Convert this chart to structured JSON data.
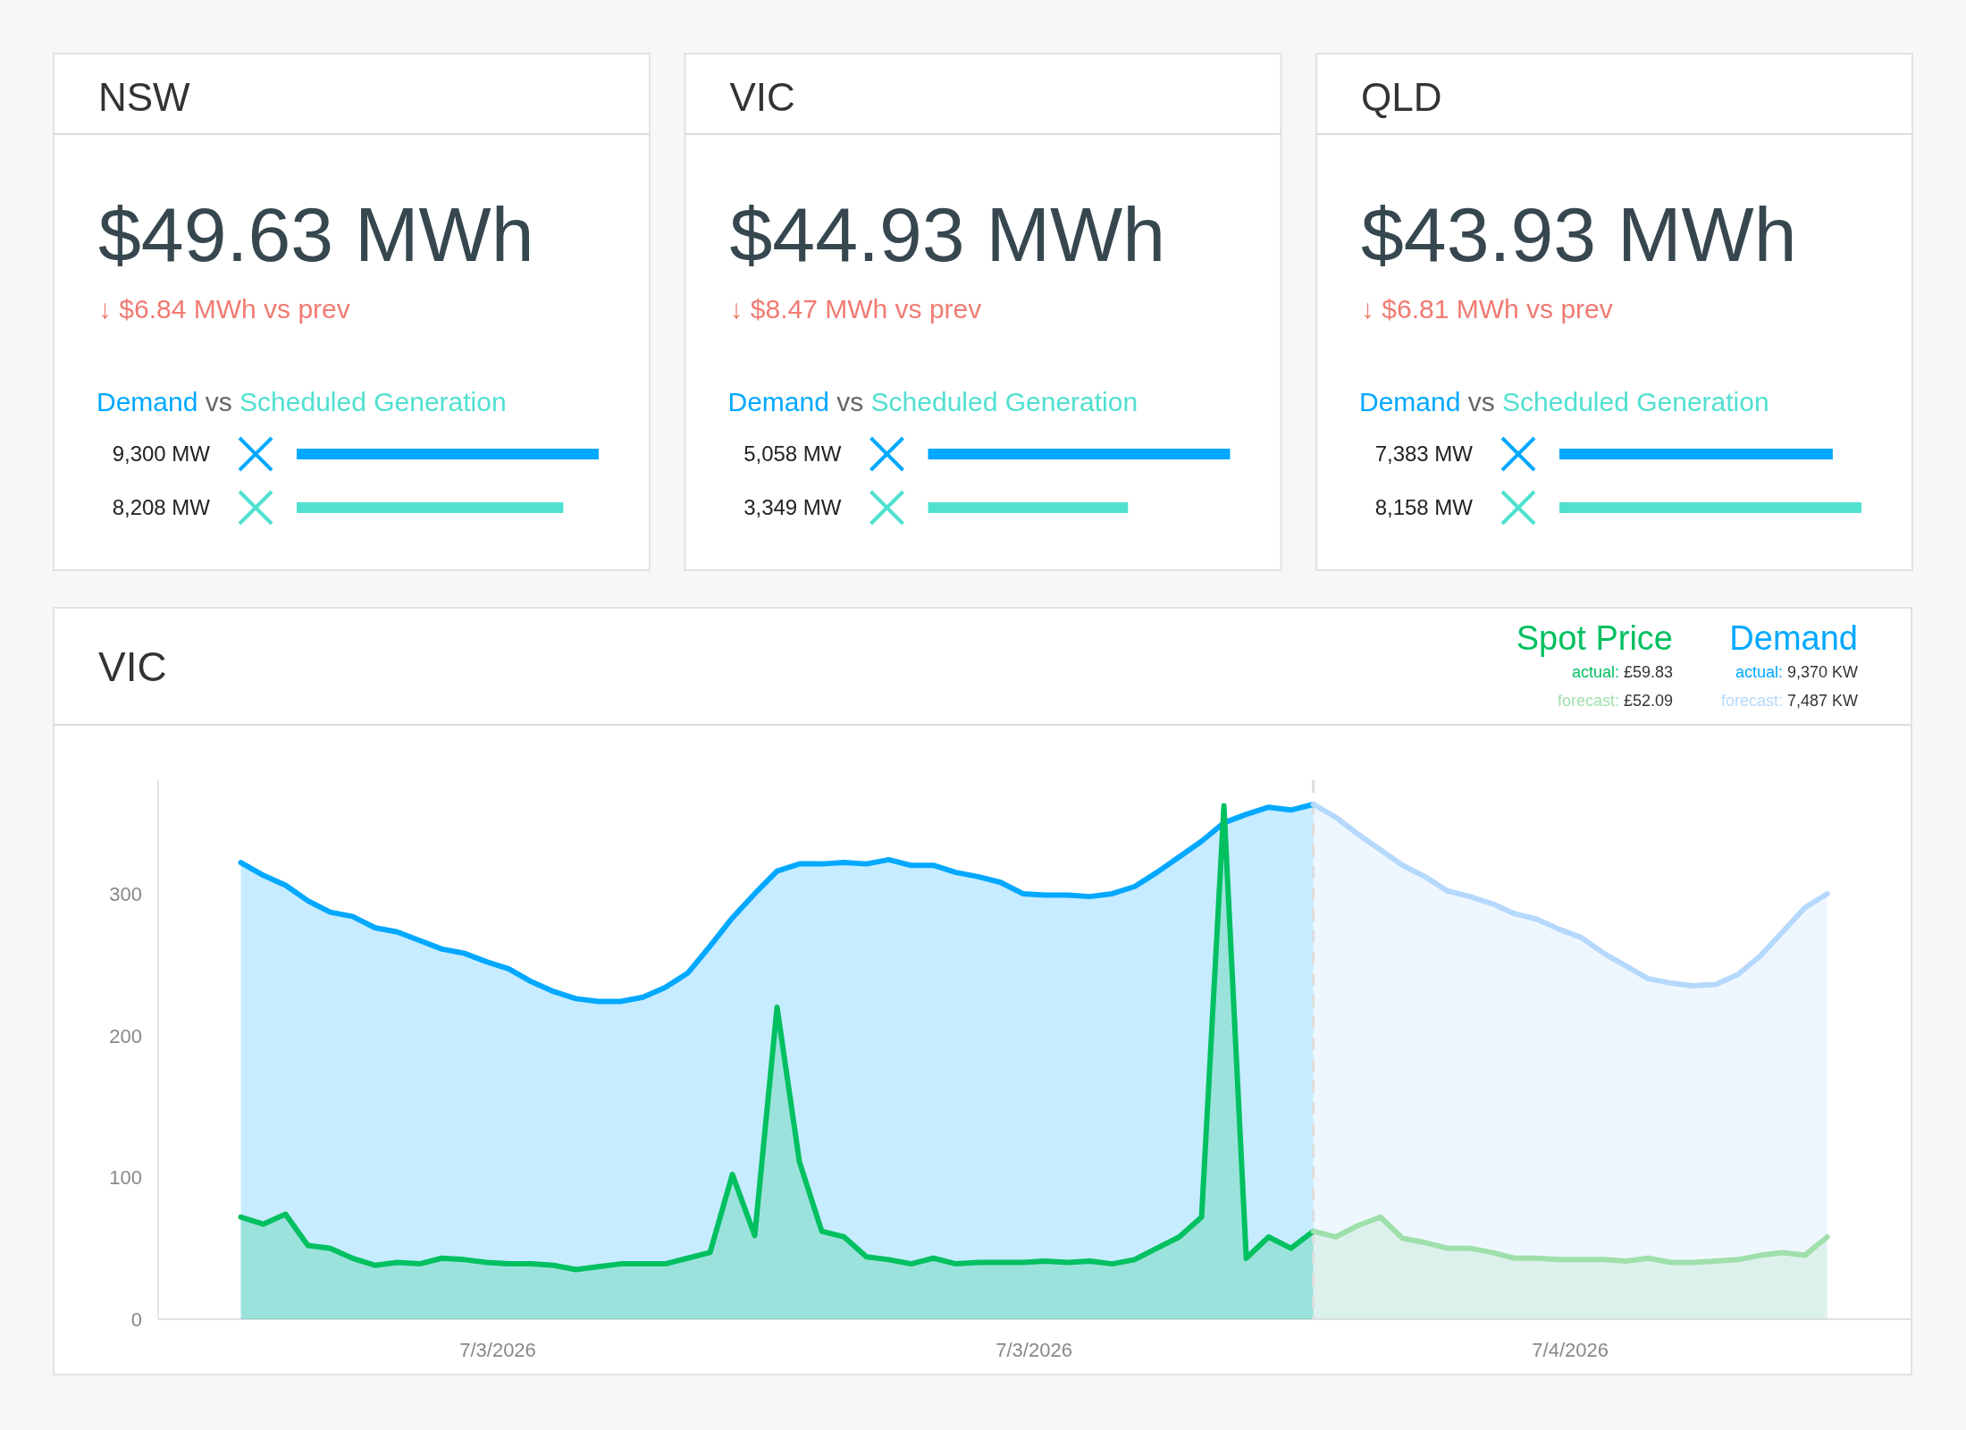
{
  "chart_data": [
    {
      "type": "bar",
      "title": "NSW",
      "orientation": "horizontal",
      "categories": [
        null,
        null
      ],
      "annotations": [
        "$49.63 MWh",
        "↓ $6.84 MWh vs prev",
        "Demand",
        "vs",
        "Scheduled Generation"
      ],
      "values": [
        9300,
        8208
      ],
      "colors": [
        "#00a8ff",
        "#50e0d0"
      ],
      "value_labels": [
        "9,300 MW",
        "8,208 MW"
      ]
    },
    {
      "type": "bar",
      "title": "VIC",
      "orientation": "horizontal",
      "categories": [
        null,
        null
      ],
      "annotations": [
        "$44.93 MWh",
        "↓ $8.47 MWh vs prev",
        "Demand",
        "vs",
        "Scheduled Generation"
      ],
      "values": [
        5058,
        3349
      ],
      "colors": [
        "#00a8ff",
        "#50e0d0"
      ],
      "value_labels": [
        "5,058 MW",
        "3,349 MW"
      ]
    },
    {
      "type": "bar",
      "title": "QLD",
      "orientation": "horizontal",
      "categories": [
        null,
        null
      ],
      "annotations": [
        "$43.93 MWh",
        "↓ $6.81 MWh vs prev",
        "Demand",
        "vs",
        "Scheduled Generation"
      ],
      "values": [
        7383,
        8158
      ],
      "colors": [
        "#00a8ff",
        "#50e0d0"
      ],
      "value_labels": [
        "7,383 MW",
        "8,158 MW"
      ]
    },
    {
      "type": "area",
      "title": "VIC",
      "legend": "top right",
      "annotations": [
        "Demand",
        "9,370 KW",
        "7,487 KW",
        "Spot Price",
        "£59.83",
        "£52.09"
      ],
      "xlim": [
        "2026-07-02T16:24",
        "2026-07-04T07:37"
      ],
      "xticks": [
        {
          "value": "2026-07-03T00:00",
          "label": "7/3/2026"
        },
        {
          "value": "2026-07-03T12:00",
          "label": "7/3/2026"
        },
        {
          "value": "2026-07-04T00:00",
          "label": "7/4/2026"
        }
      ],
      "ylim": [
        0,
        380
      ],
      "yticks": [
        0,
        100,
        200,
        300
      ],
      "ref_lines": [
        {
          "axis": "x",
          "value": "2026-07-03T18:15",
          "color": "#dddddd",
          "line_style": "dashed"
        }
      ],
      "x": [
        "2026-07-02T18:15",
        "2026-07-02T18:45",
        "2026-07-02T19:15",
        "2026-07-02T19:45",
        "2026-07-02T20:15",
        "2026-07-02T20:45",
        "2026-07-02T21:15",
        "2026-07-02T21:45",
        "2026-07-02T22:15",
        "2026-07-02T22:45",
        "2026-07-02T23:15",
        "2026-07-02T23:45",
        "2026-07-03T00:15",
        "2026-07-03T00:45",
        "2026-07-03T01:15",
        "2026-07-03T01:45",
        "2026-07-03T02:15",
        "2026-07-03T02:45",
        "2026-07-03T03:15",
        "2026-07-03T03:45",
        "2026-07-03T04:15",
        "2026-07-03T04:45",
        "2026-07-03T05:15",
        "2026-07-03T05:45",
        "2026-07-03T06:15",
        "2026-07-03T06:45",
        "2026-07-03T07:15",
        "2026-07-03T07:45",
        "2026-07-03T08:15",
        "2026-07-03T08:45",
        "2026-07-03T09:15",
        "2026-07-03T09:45",
        "2026-07-03T10:15",
        "2026-07-03T10:45",
        "2026-07-03T11:15",
        "2026-07-03T11:45",
        "2026-07-03T12:15",
        "2026-07-03T12:45",
        "2026-07-03T13:15",
        "2026-07-03T13:45",
        "2026-07-03T14:15",
        "2026-07-03T14:45",
        "2026-07-03T15:15",
        "2026-07-03T15:45",
        "2026-07-03T16:15",
        "2026-07-03T16:45",
        "2026-07-03T17:15",
        "2026-07-03T17:45",
        "2026-07-03T18:15",
        "2026-07-03T18:45",
        "2026-07-03T19:15",
        "2026-07-03T19:45",
        "2026-07-03T20:15",
        "2026-07-03T20:45",
        "2026-07-03T21:15",
        "2026-07-03T21:45",
        "2026-07-03T22:15",
        "2026-07-03T22:45",
        "2026-07-03T23:15",
        "2026-07-03T23:45",
        "2026-07-04T00:15",
        "2026-07-04T00:45",
        "2026-07-04T01:15",
        "2026-07-04T01:45",
        "2026-07-04T02:15",
        "2026-07-04T02:45",
        "2026-07-04T03:15",
        "2026-07-04T03:45",
        "2026-07-04T04:15",
        "2026-07-04T04:45",
        "2026-07-04T05:15",
        "2026-07-04T05:45"
      ],
      "series": [
        {
          "name": "actual:",
          "color": "#00a8ff",
          "values": [
            322,
            313,
            306,
            295,
            287,
            284,
            276,
            273,
            267,
            261,
            258,
            252,
            247,
            238,
            231,
            226,
            224,
            224,
            227,
            234,
            244,
            263,
            283,
            300,
            316,
            321,
            321,
            322,
            321,
            324,
            320,
            320,
            315,
            312,
            308,
            300,
            299,
            299,
            298,
            300,
            305,
            315,
            326,
            337,
            350,
            356,
            361,
            359,
            363,
            null,
            null,
            null,
            null,
            null,
            null,
            null,
            null,
            null,
            null,
            null,
            null,
            null,
            null,
            null,
            null,
            null,
            null,
            null,
            null,
            null,
            null,
            null
          ]
        },
        {
          "name": "forecast:",
          "color": "#b5d9fc",
          "values": [
            null,
            null,
            null,
            null,
            null,
            null,
            null,
            null,
            null,
            null,
            null,
            null,
            null,
            null,
            null,
            null,
            null,
            null,
            null,
            null,
            null,
            null,
            null,
            null,
            null,
            null,
            null,
            null,
            null,
            null,
            null,
            null,
            null,
            null,
            null,
            null,
            null,
            null,
            null,
            null,
            null,
            null,
            null,
            null,
            null,
            null,
            null,
            null,
            363,
            354,
            342,
            331,
            320,
            312,
            302,
            298,
            293,
            286,
            282,
            275,
            269,
            258,
            249,
            240,
            237,
            235,
            236,
            243,
            256,
            273,
            290,
            300
          ]
        },
        {
          "name": "actual:",
          "color": "#00c060",
          "values": [
            72,
            67,
            74,
            52,
            50,
            43,
            38,
            40,
            39,
            43,
            42,
            40,
            39,
            39,
            38,
            35,
            37,
            39,
            39,
            39,
            43,
            47,
            102,
            59,
            220,
            111,
            62,
            58,
            44,
            42,
            39,
            43,
            39,
            40,
            40,
            40,
            41,
            40,
            41,
            39,
            42,
            50,
            58,
            72,
            362,
            43,
            58,
            50,
            62,
            null,
            null,
            null,
            null,
            null,
            null,
            null,
            null,
            null,
            null,
            null,
            null,
            null,
            null,
            null,
            null,
            null,
            null,
            null,
            null,
            null,
            null,
            null
          ]
        },
        {
          "name": "forecast:",
          "color": "#9fdfab",
          "values": [
            null,
            null,
            null,
            null,
            null,
            null,
            null,
            null,
            null,
            null,
            null,
            null,
            null,
            null,
            null,
            null,
            null,
            null,
            null,
            null,
            null,
            null,
            null,
            null,
            null,
            null,
            null,
            null,
            null,
            null,
            null,
            null,
            null,
            null,
            null,
            null,
            null,
            null,
            null,
            null,
            null,
            null,
            null,
            null,
            null,
            null,
            null,
            null,
            62,
            58,
            66,
            72,
            57,
            54,
            50,
            50,
            47,
            43,
            43,
            42,
            42,
            42,
            41,
            43,
            40,
            40,
            41,
            42,
            45,
            47,
            45,
            58
          ]
        }
      ]
    }
  ]
}
